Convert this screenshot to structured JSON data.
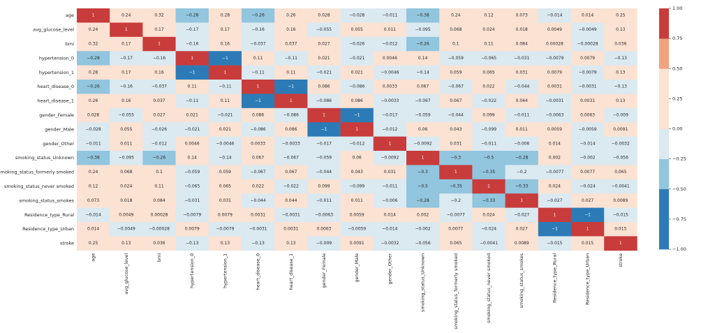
{
  "chart_data": {
    "type": "heatmap",
    "title": "",
    "labels": [
      "age",
      "avg_glucose_level",
      "bmi",
      "hypertension_0",
      "hypertension_1",
      "heart_disease_0",
      "heart_disease_1",
      "gender_Female",
      "gender_Male",
      "gender_Other",
      "smoking_status_Unknown",
      "smoking_status_formerly smoked",
      "smoking_status_never smoked",
      "smoking_status_smokes",
      "Residence_type_Rural",
      "Residence_type_Urban",
      "stroke"
    ],
    "matrix": [
      [
        1,
        0.24,
        0.32,
        -0.28,
        0.28,
        -0.26,
        0.26,
        0.028,
        -0.028,
        -0.011,
        -0.38,
        0.24,
        0.12,
        0.073,
        -0.014,
        0.014,
        0.25
      ],
      [
        0.24,
        1,
        0.17,
        -0.17,
        0.17,
        -0.16,
        0.16,
        -0.055,
        0.055,
        0.011,
        -0.095,
        0.068,
        0.024,
        0.018,
        0.0049,
        -0.0049,
        0.13
      ],
      [
        0.32,
        0.17,
        1,
        -0.16,
        0.16,
        -0.037,
        0.037,
        0.027,
        -0.026,
        -0.012,
        -0.26,
        0.1,
        0.11,
        0.084,
        0.00028,
        -0.00028,
        0.036
      ],
      [
        -0.28,
        -0.17,
        -0.16,
        1,
        -1,
        0.11,
        -0.11,
        0.021,
        -0.021,
        0.0046,
        0.14,
        -0.059,
        -0.065,
        -0.031,
        -0.0079,
        0.0079,
        -0.13
      ],
      [
        0.28,
        0.17,
        0.16,
        -1,
        1,
        -0.11,
        0.11,
        -0.021,
        0.021,
        -0.0046,
        -0.14,
        0.059,
        0.065,
        0.031,
        0.0079,
        -0.0079,
        0.13
      ],
      [
        -0.26,
        -0.16,
        -0.037,
        0.11,
        -0.11,
        1,
        -1,
        0.086,
        -0.086,
        0.0033,
        0.067,
        -0.067,
        0.022,
        -0.044,
        0.0031,
        -0.0031,
        -0.13
      ],
      [
        0.26,
        0.16,
        0.037,
        -0.11,
        0.11,
        -1,
        1,
        -0.086,
        0.086,
        -0.0033,
        -0.067,
        0.067,
        -0.022,
        0.044,
        -0.0031,
        0.0031,
        0.13
      ],
      [
        0.028,
        -0.055,
        0.027,
        0.021,
        -0.021,
        0.086,
        -0.086,
        1,
        -1,
        -0.017,
        -0.059,
        -0.044,
        0.099,
        -0.011,
        -0.0063,
        0.0063,
        -0.009
      ],
      [
        -0.028,
        0.055,
        -0.026,
        -0.021,
        0.021,
        -0.086,
        0.086,
        -1,
        1,
        -0.012,
        0.06,
        0.043,
        -0.099,
        0.011,
        0.0059,
        -0.0059,
        0.0091
      ],
      [
        -0.011,
        0.011,
        -0.012,
        0.0046,
        -0.0046,
        0.0033,
        -0.0033,
        -0.017,
        -0.012,
        1,
        -0.0092,
        0.031,
        -0.011,
        -0.006,
        0.014,
        -0.014,
        -0.0032
      ],
      [
        -0.38,
        -0.095,
        -0.26,
        0.14,
        -0.14,
        0.067,
        -0.067,
        -0.059,
        0.06,
        -0.0092,
        1,
        -0.3,
        -0.5,
        -0.28,
        0.002,
        -0.002,
        -0.056
      ],
      [
        0.24,
        0.068,
        0.1,
        -0.059,
        0.059,
        -0.067,
        0.067,
        -0.044,
        0.043,
        0.031,
        -0.3,
        1,
        -0.35,
        -0.2,
        -0.0077,
        0.0077,
        0.065
      ],
      [
        0.12,
        0.024,
        0.11,
        -0.065,
        0.065,
        0.022,
        -0.022,
        0.099,
        -0.099,
        -0.011,
        -0.5,
        -0.35,
        1,
        -0.33,
        0.024,
        -0.024,
        -0.0041
      ],
      [
        0.073,
        0.018,
        0.084,
        -0.031,
        0.031,
        -0.044,
        0.044,
        -0.011,
        0.011,
        -0.006,
        -0.28,
        -0.2,
        -0.33,
        1,
        -0.027,
        0.027,
        0.0089
      ],
      [
        -0.014,
        0.0049,
        0.00028,
        -0.0079,
        0.0079,
        0.0031,
        -0.0031,
        -0.0063,
        0.0059,
        0.014,
        0.002,
        -0.0077,
        0.024,
        -0.027,
        1,
        -1,
        -0.015
      ],
      [
        0.014,
        -0.0049,
        -0.00028,
        0.0079,
        -0.0079,
        -0.0031,
        0.0031,
        0.0063,
        -0.0059,
        -0.014,
        -0.002,
        0.0077,
        -0.024,
        0.027,
        -1,
        1,
        0.015
      ],
      [
        0.25,
        0.13,
        0.036,
        -0.13,
        0.13,
        -0.13,
        0.13,
        -0.009,
        0.0091,
        -0.0032,
        -0.056,
        0.065,
        -0.0041,
        0.0089,
        -0.015,
        0.015,
        1
      ]
    ],
    "vmin": -1,
    "vmax": 1,
    "colorbar": {
      "ticks": [
        1.0,
        0.75,
        0.5,
        0.25,
        0.0,
        -0.25,
        -0.5,
        -0.75,
        -1.0
      ],
      "tick_labels": [
        "1.00",
        "0.75",
        "0.50",
        "0.25",
        "0.00",
        "−0.25",
        "−0.50",
        "−0.75",
        "−1.00"
      ],
      "bands": [
        {
          "from": -1.0,
          "to": -0.75,
          "color": "#2c7bb6"
        },
        {
          "from": -0.75,
          "to": -0.5,
          "color": "#2c7bb6"
        },
        {
          "from": -0.5,
          "to": -0.25,
          "color": "#92c5de"
        },
        {
          "from": -0.25,
          "to": 0.0,
          "color": "#dbe9f1"
        },
        {
          "from": 0.0,
          "to": 0.25,
          "color": "#fbe2d3"
        },
        {
          "from": 0.25,
          "to": 0.5,
          "color": "#fbe2d3"
        },
        {
          "from": 0.5,
          "to": 0.75,
          "color": "#f1a27f"
        },
        {
          "from": 0.75,
          "to": 1.0,
          "color": "#c83c3c"
        }
      ],
      "position": "right"
    },
    "cell_colors": {
      "strong_pos": "#c83c3c",
      "weak_pos": "#fbe2d3",
      "weak_neg": "#dbe9f1",
      "mid_neg": "#92c5de",
      "strong_neg": "#2c7bb6",
      "text_dark": "#262626",
      "text_light": "#ffffff"
    }
  }
}
